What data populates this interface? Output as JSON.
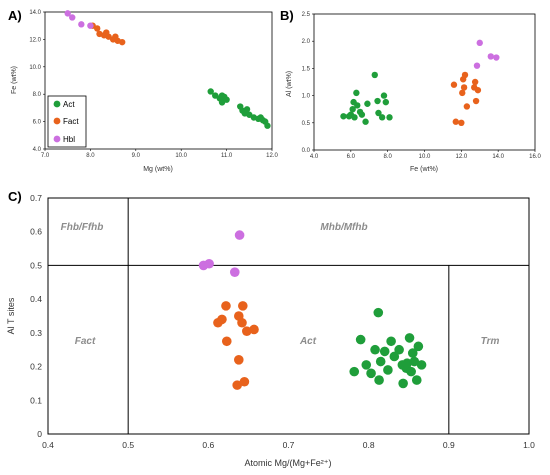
{
  "colors": {
    "Act": "#1f9e3a",
    "Fact": "#e8621c",
    "Hbl": "#cc6fe0"
  },
  "chart_data": [
    {
      "panel_label": "A)",
      "type": "scatter",
      "xlabel": "Mg (wt%)",
      "ylabel": "Fe (wt%)",
      "xlim": [
        7.0,
        12.0
      ],
      "ylim": [
        4.0,
        14.0
      ],
      "xticks": [
        "7.0",
        "8.0",
        "9.0",
        "10.0",
        "11.0",
        "12.0"
      ],
      "yticks": [
        "4.0",
        "6.0",
        "8.0",
        "10.0",
        "12.0",
        "14.0"
      ],
      "legend": {
        "placement": "bottom-left",
        "entries": [
          "Act",
          "Fact",
          "Hbl"
        ]
      },
      "series": [
        {
          "name": "Act",
          "points": [
            [
              10.65,
              8.2
            ],
            [
              10.75,
              7.9
            ],
            [
              10.85,
              7.7
            ],
            [
              10.9,
              7.4
            ],
            [
              10.95,
              7.8
            ],
            [
              11.0,
              7.6
            ],
            [
              10.9,
              7.9
            ],
            [
              11.3,
              7.1
            ],
            [
              11.35,
              6.8
            ],
            [
              11.4,
              6.6
            ],
            [
              11.5,
              6.5
            ],
            [
              11.6,
              6.3
            ],
            [
              11.7,
              6.2
            ],
            [
              11.75,
              6.3
            ],
            [
              11.8,
              6.1
            ],
            [
              11.85,
              6.0
            ],
            [
              11.9,
              5.7
            ],
            [
              11.45,
              6.9
            ]
          ]
        },
        {
          "name": "Fact",
          "points": [
            [
              8.05,
              13.0
            ],
            [
              8.15,
              12.8
            ],
            [
              8.2,
              12.4
            ],
            [
              8.3,
              12.3
            ],
            [
              8.4,
              12.2
            ],
            [
              8.5,
              12.0
            ],
            [
              8.55,
              12.2
            ],
            [
              8.6,
              11.9
            ],
            [
              8.7,
              11.8
            ],
            [
              8.35,
              12.5
            ]
          ]
        },
        {
          "name": "Hbl",
          "points": [
            [
              7.5,
              13.9
            ],
            [
              7.6,
              13.6
            ],
            [
              7.8,
              13.1
            ],
            [
              8.0,
              13.0
            ]
          ]
        }
      ]
    },
    {
      "panel_label": "B)",
      "type": "scatter",
      "xlabel": "Fe (wt%)",
      "ylabel": "Al (wt%)",
      "xlim": [
        4.0,
        16.0
      ],
      "ylim": [
        0.0,
        2.5
      ],
      "xticks": [
        "4.0",
        "6.0",
        "8.0",
        "10.0",
        "12.0",
        "14.0",
        "16.0"
      ],
      "yticks": [
        "0.0",
        "0.5",
        "1.0",
        "1.5",
        "2.0",
        "2.5"
      ],
      "series": [
        {
          "name": "Act",
          "points": [
            [
              5.6,
              0.62
            ],
            [
              5.9,
              0.62
            ],
            [
              6.0,
              0.65
            ],
            [
              6.1,
              0.75
            ],
            [
              6.15,
              0.88
            ],
            [
              6.2,
              0.6
            ],
            [
              6.3,
              1.05
            ],
            [
              6.35,
              0.82
            ],
            [
              6.5,
              0.7
            ],
            [
              6.6,
              0.65
            ],
            [
              6.8,
              0.52
            ],
            [
              6.9,
              0.85
            ],
            [
              7.3,
              1.38
            ],
            [
              7.45,
              0.9
            ],
            [
              7.5,
              0.68
            ],
            [
              7.7,
              0.6
            ],
            [
              7.8,
              1.0
            ],
            [
              7.9,
              0.88
            ],
            [
              8.1,
              0.6
            ]
          ]
        },
        {
          "name": "Fact",
          "points": [
            [
              11.6,
              1.2
            ],
            [
              11.7,
              0.52
            ],
            [
              12.0,
              0.5
            ],
            [
              12.05,
              1.05
            ],
            [
              12.1,
              1.3
            ],
            [
              12.15,
              1.15
            ],
            [
              12.3,
              0.8
            ],
            [
              12.2,
              1.38
            ],
            [
              12.7,
              1.15
            ],
            [
              12.75,
              1.25
            ],
            [
              12.8,
              0.9
            ],
            [
              12.9,
              1.1
            ]
          ]
        },
        {
          "name": "Hbl",
          "points": [
            [
              12.85,
              1.55
            ],
            [
              13.0,
              1.97
            ],
            [
              13.6,
              1.72
            ],
            [
              13.9,
              1.7
            ]
          ]
        }
      ]
    },
    {
      "panel_label": "C)",
      "type": "scatter",
      "xlabel": "Atomic Mg/(Mg+Fe²⁺)",
      "ylabel": "Al T sites",
      "xlim": [
        0.4,
        1.0
      ],
      "ylim": [
        0.0,
        0.7
      ],
      "xticks": [
        "0.4",
        "0.5",
        "0.6",
        "0.7",
        "0.8",
        "0.9",
        "1.0"
      ],
      "yticks": [
        "0",
        "0.1",
        "0.2",
        "0.3",
        "0.4",
        "0.5",
        "0.6",
        "0.7"
      ],
      "fields": [
        "Fhb/Ffhb",
        "Mhb/Mfhb",
        "Fact",
        "Act",
        "Trm"
      ],
      "series": [
        {
          "name": "Act",
          "points": [
            [
              0.782,
              0.185
            ],
            [
              0.79,
              0.28
            ],
            [
              0.797,
              0.205
            ],
            [
              0.803,
              0.18
            ],
            [
              0.808,
              0.25
            ],
            [
              0.812,
              0.36
            ],
            [
              0.813,
              0.16
            ],
            [
              0.815,
              0.215
            ],
            [
              0.82,
              0.245
            ],
            [
              0.824,
              0.19
            ],
            [
              0.828,
              0.275
            ],
            [
              0.832,
              0.23
            ],
            [
              0.838,
              0.25
            ],
            [
              0.842,
              0.205
            ],
            [
              0.843,
              0.15
            ],
            [
              0.847,
              0.195
            ],
            [
              0.848,
              0.21
            ],
            [
              0.851,
              0.285
            ],
            [
              0.853,
              0.185
            ],
            [
              0.857,
              0.215
            ],
            [
              0.86,
              0.16
            ],
            [
              0.862,
              0.26
            ],
            [
              0.866,
              0.205
            ],
            [
              0.855,
              0.24
            ]
          ]
        },
        {
          "name": "Fact",
          "points": [
            [
              0.612,
              0.33
            ],
            [
              0.617,
              0.34
            ],
            [
              0.622,
              0.38
            ],
            [
              0.623,
              0.275
            ],
            [
              0.636,
              0.145
            ],
            [
              0.638,
              0.22
            ],
            [
              0.638,
              0.35
            ],
            [
              0.642,
              0.33
            ],
            [
              0.643,
              0.38
            ],
            [
              0.645,
              0.155
            ],
            [
              0.648,
              0.305
            ],
            [
              0.657,
              0.31
            ]
          ]
        },
        {
          "name": "Hbl",
          "points": [
            [
              0.594,
              0.5
            ],
            [
              0.601,
              0.505
            ],
            [
              0.633,
              0.48
            ],
            [
              0.639,
              0.59
            ]
          ]
        }
      ]
    }
  ]
}
